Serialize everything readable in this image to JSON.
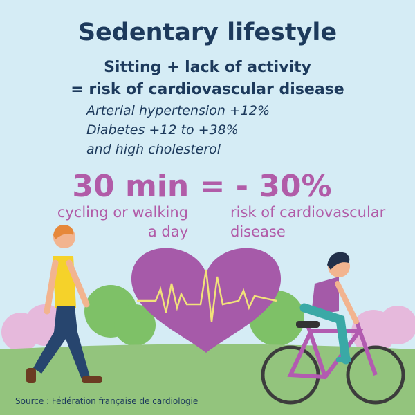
{
  "title": "Sedentary lifestyle",
  "subtitle": [
    "Sitting + lack of activity",
    "= risk of cardiovascular disease"
  ],
  "risks": [
    "Arterial hypertension +12%",
    "Diabetes +12 to +38%",
    "and high cholesterol"
  ],
  "headline": "30 min = - 30%",
  "left_caption": [
    "cycling or walking",
    "a day"
  ],
  "right_caption": [
    "risk of cardiovascular",
    "disease"
  ],
  "source": "Source : Fédération française de cardiologie"
}
